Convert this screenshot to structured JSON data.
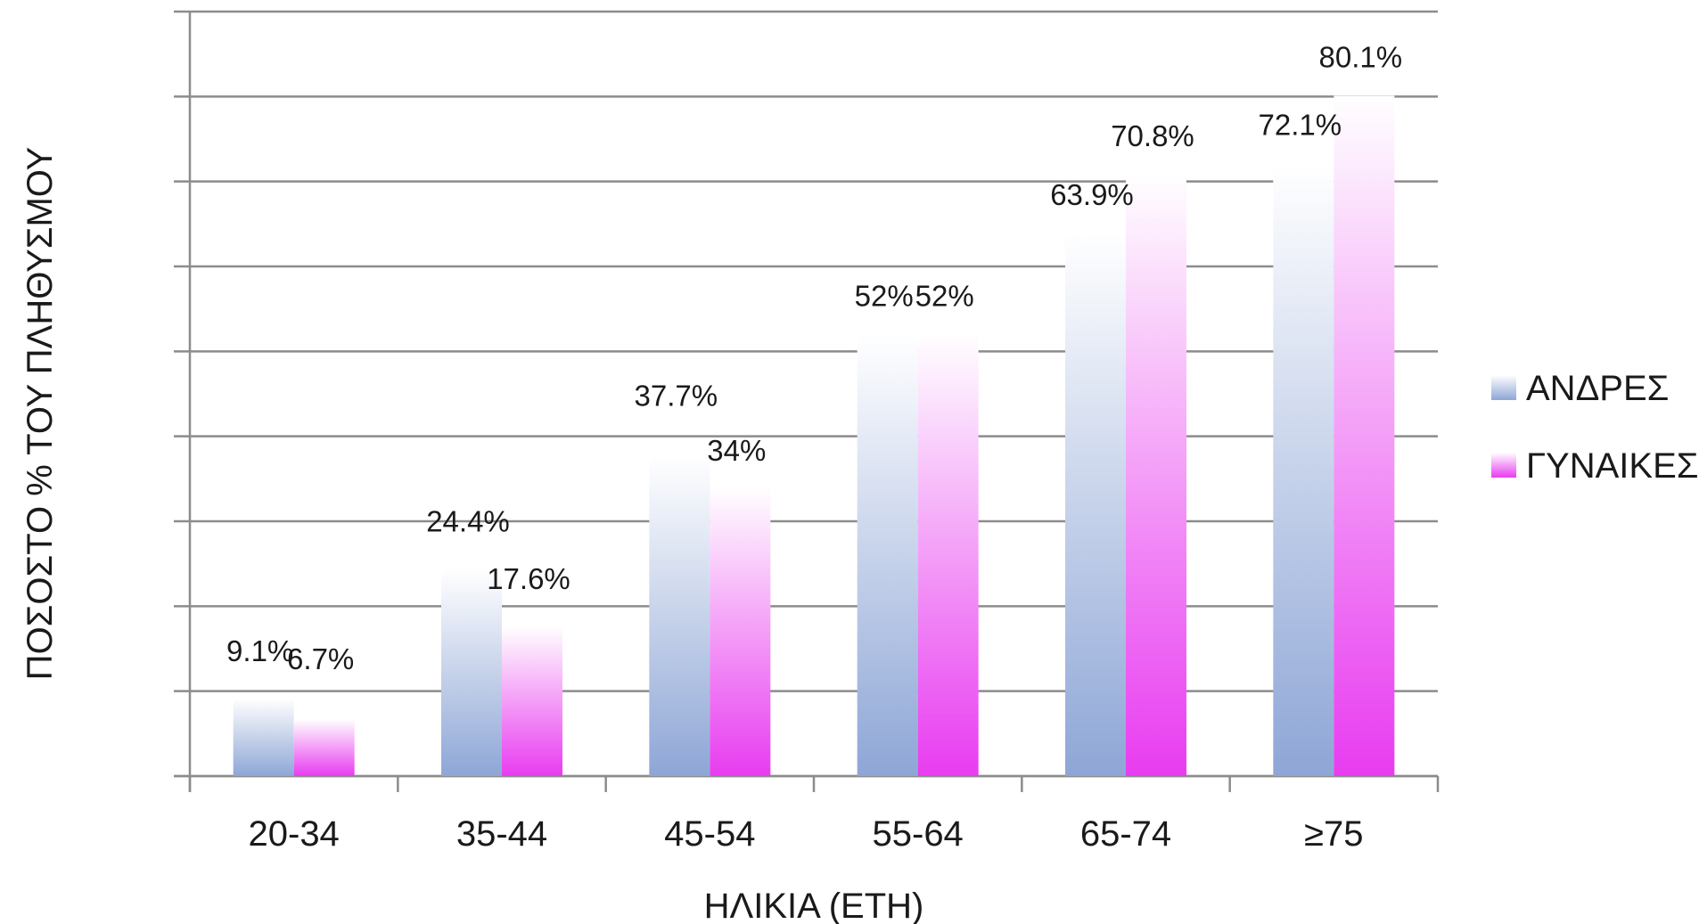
{
  "chart_data": {
    "type": "bar",
    "categories": [
      "20-34",
      "35-44",
      "45-54",
      "55-64",
      "65-74",
      "≥75"
    ],
    "series": [
      {
        "name": "ΑΝΔΡΕΣ",
        "values": [
          9.1,
          24.4,
          37.7,
          52,
          63.9,
          72.1
        ],
        "labels": [
          "9.1%",
          "24.4%",
          "37.7%",
          "52%",
          "63.9%",
          "72.1%"
        ],
        "color_top": "#ffffff",
        "color_bottom": "#8ea6d6"
      },
      {
        "name": "ΓΥΝΑΙΚΕΣ",
        "values": [
          6.7,
          17.6,
          34,
          52,
          70.8,
          80.1
        ],
        "labels": [
          "6.7%",
          "17.6%",
          "34%",
          "52%",
          "70.8%",
          "80.1%"
        ],
        "color_top": "#ffffff",
        "color_bottom": "#e83cf0"
      }
    ],
    "title": "",
    "xlabel": "ΗΛΙΚΙΑ (ΕΤΗ)",
    "ylabel": "ΠΟΣΟΣΤΟ % ΤΟΥ ΠΛΗΘΥΣΜΟΥ",
    "ylim": [
      0,
      90
    ],
    "grid": true,
    "legend_position": "right"
  }
}
